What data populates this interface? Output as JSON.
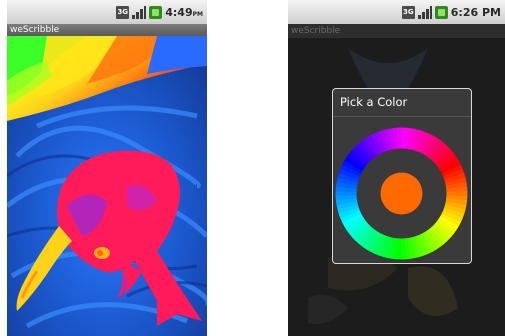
{
  "screens": [
    {
      "status_bar": {
        "network": "3G",
        "time": "4:49",
        "ampm": "PM"
      },
      "app_title": "weScribble"
    },
    {
      "status_bar": {
        "network": "3G",
        "time": "6:26",
        "ampm": "PM"
      },
      "app_title": "weScribble",
      "dialog": {
        "title": "Pick a Color",
        "selected_color": "#ff6a00"
      }
    }
  ],
  "colors": {
    "canvas_blue": "#1a55c8",
    "dolphin": "#ff1a5a",
    "selected_color": "#ff6a00"
  }
}
